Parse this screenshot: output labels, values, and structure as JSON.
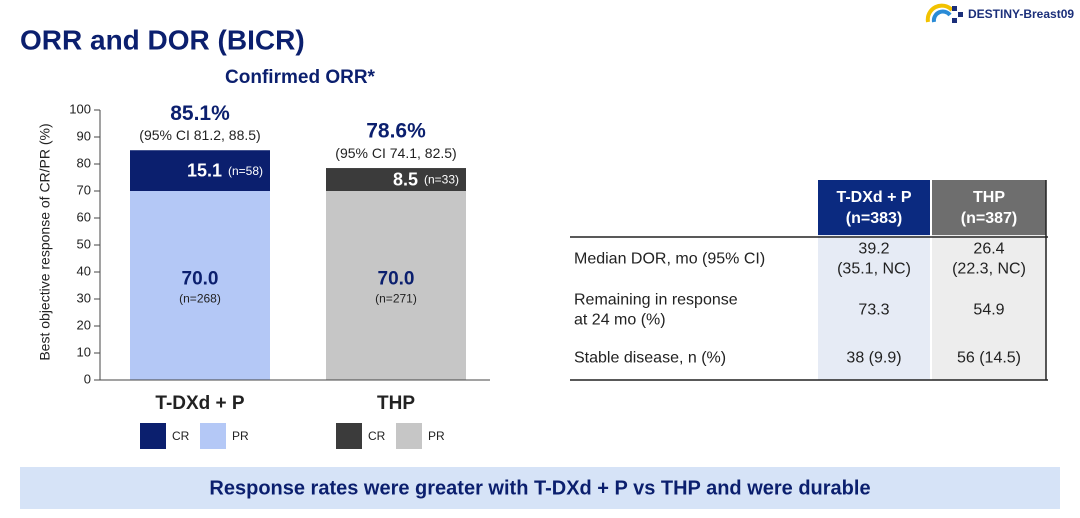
{
  "header": {
    "title": "ORR and DOR (BICR)",
    "logo": "DESTINY-Breast09"
  },
  "chart_data": {
    "type": "stacked-bar",
    "title": "Confirmed ORR*",
    "ylabel": "Best objective response of CR/PR (%)",
    "categories": [
      "T-DXd + P",
      "THP"
    ],
    "total_labels": [
      "85.1%",
      "78.6%"
    ],
    "ci_labels": [
      "(95% CI 81.2, 88.5)",
      "(95% CI 74.1, 82.5)"
    ],
    "ylim": [
      0,
      100
    ],
    "yticks": [
      0,
      10,
      20,
      30,
      40,
      50,
      60,
      70,
      80,
      90,
      100
    ],
    "series": [
      {
        "name": "PR",
        "colors": [
          "#b4c8f6",
          "#c6c6c6"
        ],
        "values": [
          70.0,
          70.0
        ],
        "value_labels": [
          "70.0",
          "70.0"
        ],
        "n_labels": [
          "(n=268)",
          "(n=271)"
        ]
      },
      {
        "name": "CR",
        "colors": [
          "#0b1f6e",
          "#3b3b3b"
        ],
        "values": [
          15.1,
          8.5
        ],
        "value_labels": [
          "15.1",
          "8.5"
        ],
        "n_labels": [
          "(n=58)",
          "(n=33)"
        ]
      }
    ]
  },
  "table": {
    "headers": [
      {
        "name": "T-DXd + P",
        "n": "(n=383)"
      },
      {
        "name": "THP",
        "n": "(n=387)"
      }
    ],
    "rows": [
      {
        "label": [
          "Median DOR, mo (95% CI)"
        ],
        "cells": [
          [
            "39.2",
            "(35.1, NC)"
          ],
          [
            "26.4",
            "(22.3, NC)"
          ]
        ]
      },
      {
        "label": [
          "Remaining in response",
          "at 24 mo (%)"
        ],
        "cells": [
          [
            "73.3"
          ],
          [
            "54.9"
          ]
        ]
      },
      {
        "label": [
          "Stable disease, n (%)"
        ],
        "cells": [
          [
            "38 (9.9)"
          ],
          [
            "56 (14.5)"
          ]
        ]
      }
    ]
  },
  "footer": "Response rates were greater with T-DXd + P vs THP and were durable"
}
